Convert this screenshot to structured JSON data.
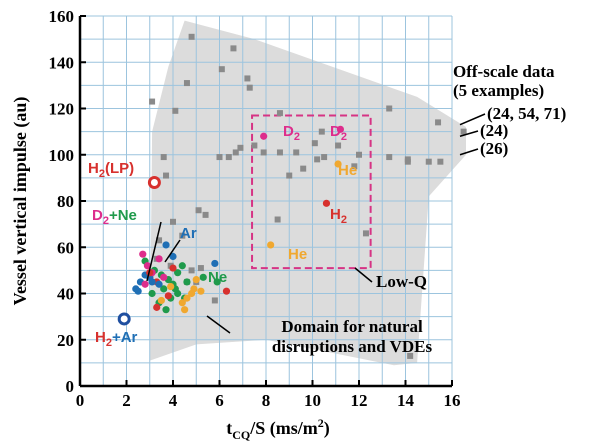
{
  "chart_data": {
    "type": "scatter",
    "xlabel": "t",
    "xlabel_sub": "CQ",
    "xlabel_rest": "/S (ms/m",
    "xlabel_sup": "2",
    "xlabel_end": ")",
    "ylabel": "Vessel vertical impulse (au)",
    "xlim": [
      0,
      16
    ],
    "ylim": [
      0,
      160
    ],
    "x_ticks": [
      "0",
      "2",
      "4",
      "6",
      "8",
      "10",
      "12",
      "14",
      "16"
    ],
    "y_ticks": [
      "0",
      "20",
      "40",
      "60",
      "80",
      "100",
      "120",
      "140",
      "160"
    ],
    "grid": true,
    "colors": {
      "grid": "#9cc4de",
      "domain": "#dcdcdc",
      "gray": "#8a8a8a",
      "H2": "#d7312e",
      "D2": "#dd2d8c",
      "He": "#f0a830",
      "Ne": "#1f9a4b",
      "Ar": "#1f6fb5",
      "H2Ar": "#1f4fa0",
      "box": "#d63384"
    },
    "domain_region": {
      "label": "Domain for natural",
      "label2": "disruptions and VDEs",
      "polygon": [
        [
          3.0,
          11
        ],
        [
          3.1,
          110
        ],
        [
          3.8,
          138
        ],
        [
          4.5,
          158
        ],
        [
          7.5,
          150
        ],
        [
          14.5,
          125
        ],
        [
          16.6,
          112
        ],
        [
          16.6,
          100
        ],
        [
          15.0,
          82
        ],
        [
          14.5,
          10
        ],
        [
          13.5,
          9
        ],
        [
          11,
          14
        ],
        [
          8,
          20
        ],
        [
          5,
          18
        ],
        [
          3.0,
          11
        ]
      ]
    },
    "low_q_box": {
      "label": "Low-Q",
      "x": [
        7.4,
        12.5
      ],
      "y": [
        51,
        117
      ]
    },
    "offscale": {
      "title": "Off-scale data",
      "subtitle": "(5 examples)",
      "labels": [
        "(24, 54, 71)",
        "(24)",
        "(26)"
      ],
      "y": [
        113,
        108,
        100
      ]
    },
    "series": [
      {
        "name": "gray",
        "marker": "square",
        "x": [
          3.2,
          3.1,
          4.1,
          4.6,
          4.8,
          6.6,
          6.1,
          7.2,
          7.3,
          8.6,
          10.1,
          10.4,
          11.1,
          13.3,
          15.4,
          14.1,
          15.5,
          16.5,
          7.9,
          8.6,
          9.3,
          9.6,
          10.2,
          12.0,
          13.3,
          14.1,
          15.0,
          6.0,
          6.4,
          6.7,
          6.9,
          7.5,
          9.0,
          10.5,
          11.8,
          5.1,
          5.4,
          8.5,
          12.3,
          3.6,
          3.7,
          4.0,
          4.4,
          3.3,
          3.4,
          3.9,
          4.6,
          4.8,
          5.0,
          5.2,
          5.8,
          14.2
        ],
        "y": [
          88,
          123,
          119,
          131,
          151,
          146,
          137,
          133,
          129,
          118,
          105,
          110,
          104,
          120,
          114,
          97,
          97,
          110,
          101,
          101,
          101,
          94,
          98,
          100,
          99,
          98,
          97,
          99,
          99,
          101,
          103,
          104,
          91,
          99,
          95,
          76,
          74,
          72,
          66,
          99,
          91,
          71,
          65,
          55,
          63,
          52,
          45,
          50,
          45,
          51,
          37,
          13
        ]
      },
      {
        "name": "H2(LP)",
        "marker": "circle",
        "color_key": "H2",
        "x": [
          3.2
        ],
        "y": [
          88
        ],
        "ring": true
      },
      {
        "name": "D2",
        "color_key": "D2",
        "x": [
          7.9,
          11.2
        ],
        "y": [
          108,
          111
        ]
      },
      {
        "name": "He",
        "color_key": "He",
        "x": [
          11.1,
          8.2
        ],
        "y": [
          96,
          61
        ]
      },
      {
        "name": "H2",
        "color_key": "H2",
        "x": [
          10.6,
          6.3,
          3.0,
          3.3
        ],
        "y": [
          79,
          41,
          47,
          45
        ]
      },
      {
        "name": "Ne",
        "color_key": "Ne",
        "x": [
          2.8,
          3.2,
          3.5,
          3.8,
          4.0,
          4.2,
          4.4,
          3.6,
          3.9,
          4.2,
          4.6,
          5.3,
          5.9,
          3.1,
          3.4,
          3.7,
          4.5,
          4.1
        ],
        "y": [
          54,
          50,
          48,
          46,
          44,
          49,
          52,
          42,
          38,
          40,
          45,
          47,
          45,
          40,
          36,
          33,
          38,
          42
        ]
      },
      {
        "name": "Ar",
        "color_key": "Ar",
        "x": [
          2.4,
          2.6,
          2.8,
          3.0,
          3.4,
          3.7,
          4.0,
          5.8,
          2.5,
          3.1
        ],
        "y": [
          42,
          45,
          48,
          47,
          44,
          61,
          56,
          53,
          41,
          45
        ]
      },
      {
        "name": "He-small",
        "color_key": "He",
        "x": [
          4.6,
          4.9,
          5.0,
          4.4,
          3.5,
          5.2,
          4.5,
          3.9,
          4.8
        ],
        "y": [
          38,
          42,
          46,
          36,
          37,
          41,
          33,
          43,
          40
        ]
      },
      {
        "name": "D2-small",
        "color_key": "D2",
        "x": [
          2.7,
          2.9,
          3.1,
          3.4,
          3.6,
          2.8
        ],
        "y": [
          57,
          52,
          49,
          55,
          47,
          44
        ]
      },
      {
        "name": "red-small",
        "color_key": "H2",
        "x": [
          3.3,
          3.8,
          4.0,
          3.0
        ],
        "y": [
          34,
          39,
          51,
          49
        ]
      },
      {
        "name": "H2+Ar",
        "color_key": "H2Ar",
        "x": [
          1.9
        ],
        "y": [
          29
        ],
        "ring": true
      }
    ],
    "labels": [
      {
        "text": "H",
        "sub": "2",
        "after": "(LP)",
        "color_key": "H2"
      },
      {
        "text": "D",
        "sub": "2",
        "color_key": "D2"
      },
      {
        "text": "D",
        "sub": "2",
        "color_key": "D2"
      },
      {
        "text": "He",
        "color_key": "He"
      },
      {
        "text": "He",
        "color_key": "He"
      },
      {
        "text": "H",
        "sub": "2",
        "color_key": "H2"
      },
      {
        "text": "D",
        "sub": "2",
        "after": "+Ne",
        "color_key": "D2",
        "after_color_key": "Ne"
      },
      {
        "text": "Ar",
        "color_key": "Ar"
      },
      {
        "text": "Ne",
        "color_key": "Ne"
      },
      {
        "text": "H",
        "sub": "2",
        "after": "+Ar",
        "color_key": "H2",
        "after_color_key": "Ar"
      }
    ]
  }
}
